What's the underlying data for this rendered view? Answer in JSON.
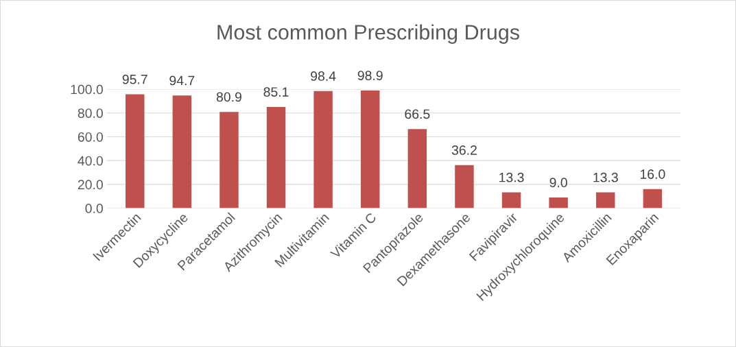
{
  "chart_data": {
    "type": "bar",
    "title": "Most common Prescribing Drugs",
    "categories": [
      "Ivermectin",
      "Doxycycline",
      "Paracetamol",
      "Azithromycin",
      "Multivitamin",
      "Vitamin C",
      "Pantoprazole",
      "Dexamethasone",
      "Favipiravir",
      "Hydroxychloroquine",
      "Amoxicillin",
      "Enoxaparin"
    ],
    "values": [
      95.7,
      94.7,
      80.9,
      85.1,
      98.4,
      98.9,
      66.5,
      36.2,
      13.3,
      9.0,
      13.3,
      16.0
    ],
    "color": "#c0504d",
    "ylim": [
      0,
      100
    ],
    "yticks": [
      {
        "value": 0,
        "label": "0.0"
      },
      {
        "value": 20,
        "label": "20.0"
      },
      {
        "value": 40,
        "label": "40.0"
      },
      {
        "value": 60,
        "label": "60.0"
      },
      {
        "value": 80,
        "label": "80.0"
      },
      {
        "value": 100,
        "label": "100.0"
      }
    ],
    "value_labels": [
      "95.7",
      "94.7",
      "80.9",
      "85.1",
      "98.4",
      "98.9",
      "66.5",
      "36.2",
      "13.3",
      "9.0",
      "13.3",
      "16.0"
    ],
    "grid": "y"
  }
}
